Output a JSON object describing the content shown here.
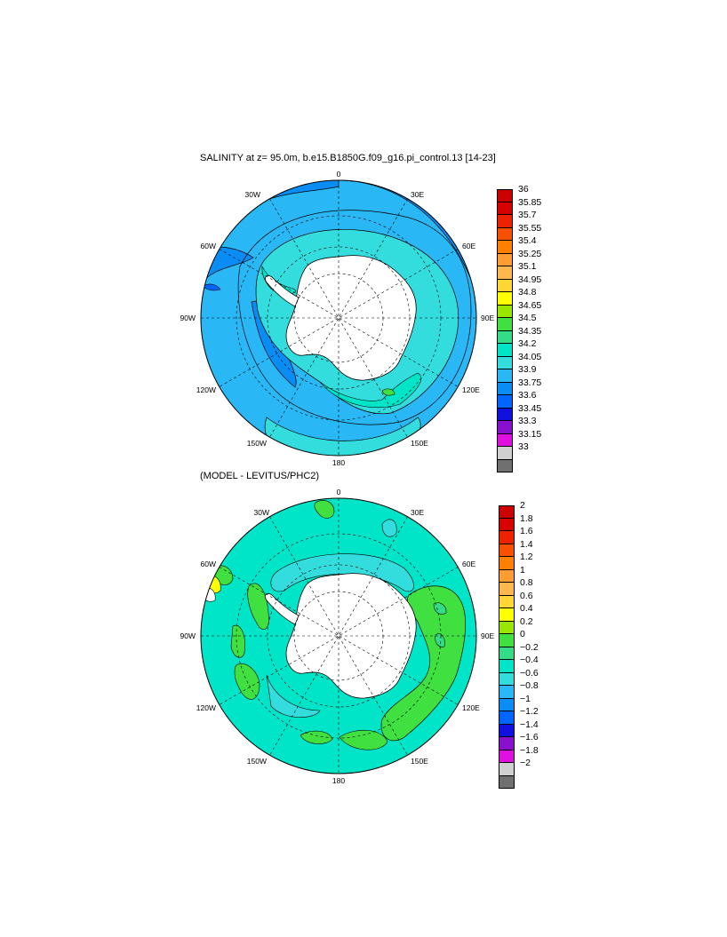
{
  "panel1": {
    "title": "SALINITY at z=  95.0m, b.e15.B1850G.f09_g16.pi_control.13 [14-23]",
    "lon_labels": {
      "top": "0",
      "nw": "30W",
      "ne": "30E",
      "w1": "60W",
      "e1": "60E",
      "w": "90W",
      "e": "90E",
      "sw1": "120W",
      "se1": "120E",
      "sw": "150W",
      "se": "150E",
      "bottom": "180"
    },
    "colorbar": {
      "labels": [
        "36",
        "35.85",
        "35.7",
        "35.55",
        "35.4",
        "35.25",
        "35.1",
        "34.95",
        "34.8",
        "34.65",
        "34.5",
        "34.35",
        "34.2",
        "34.05",
        "33.9",
        "33.75",
        "33.6",
        "33.45",
        "33.3",
        "33.15",
        "33"
      ],
      "colors": [
        "#cc0000",
        "#d90000",
        "#ee2200",
        "#f75000",
        "#ff8000",
        "#ff9d33",
        "#ffb84d",
        "#ffd633",
        "#ffff00",
        "#99e600",
        "#40e040",
        "#33dd88",
        "#00e5c8",
        "#33dddd",
        "#29b8f5",
        "#0a8cf5",
        "#0066ff",
        "#1010e0",
        "#8a10d0",
        "#e010e0",
        "#d0d0d0",
        "#707070"
      ]
    }
  },
  "panel2": {
    "title": "(MODEL - LEVITUS/PHC2)",
    "lon_labels": {
      "top": "0",
      "nw": "30W",
      "ne": "30E",
      "w1": "60W",
      "e1": "60E",
      "w": "90W",
      "e": "90E",
      "sw1": "120W",
      "se1": "120E",
      "sw": "150W",
      "se": "150E",
      "bottom": "180"
    },
    "colorbar": {
      "labels": [
        "2",
        "1.8",
        "1.6",
        "1.4",
        "1.2",
        "1",
        "0.8",
        "0.6",
        "0.4",
        "0.2",
        "0",
        "−0.2",
        "−0.4",
        "−0.6",
        "−0.8",
        "−1",
        "−1.2",
        "−1.4",
        "−1.6",
        "−1.8",
        "−2"
      ],
      "colors": [
        "#cc0000",
        "#d90000",
        "#ee2200",
        "#f75000",
        "#ff8000",
        "#ff9d33",
        "#ffb84d",
        "#ffd633",
        "#ffff00",
        "#99e600",
        "#40e040",
        "#33dd88",
        "#00e5c8",
        "#33dddd",
        "#29b8f5",
        "#0a8cf5",
        "#0066ff",
        "#1010e0",
        "#8a10d0",
        "#e010e0",
        "#d0d0d0",
        "#707070"
      ]
    }
  }
}
